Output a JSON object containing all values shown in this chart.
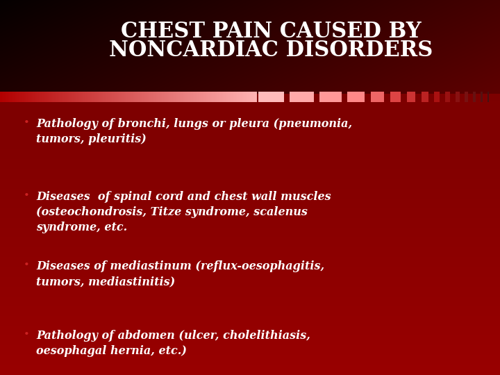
{
  "title_line1": "CHEST PAIN CAUSED BY",
  "title_line2": "NONCARDIAC DISORDERS",
  "title_color": "#FFFFFF",
  "title_fontsize": 22,
  "bullet_points": [
    "Pathology of bronchi, lungs or pleura (pneumonia,\ntumors, pleuritis)",
    "Diseases  of spinal cord and chest wall muscles\n(osteochondrosis, Titze syndrome, scalenus\nsyndrome, etc.",
    "Diseases of mediastinum (reflux-oesophagitis,\ntumors, mediastinitis)",
    "Pathology of abdomen (ulcer, cholelithiasis,\noesophagal hernia, etc.)"
  ],
  "bullet_color": "#FFFFFF",
  "bullet_fontsize": 11.5,
  "bullet_marker": "•",
  "fig_width": 7.2,
  "fig_height": 5.4,
  "dpi": 100
}
